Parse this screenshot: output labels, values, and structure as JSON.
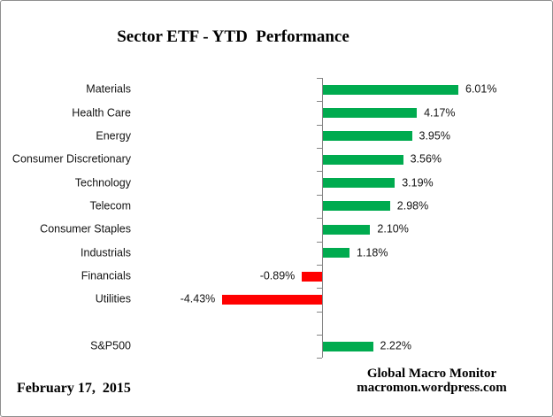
{
  "header": {
    "title": "Sector ETF - YTD  Performance"
  },
  "footer": {
    "date": "February 17,  2015",
    "brand_line1": "Global Macro Monitor",
    "brand_line2": "macromon.wordpress.com"
  },
  "colors": {
    "positive_bar": "#00AB4F",
    "negative_bar": "#FF0000",
    "axis": "#858585",
    "label_text": "#141414"
  },
  "chart_data": {
    "type": "bar",
    "orientation": "horizontal",
    "title": "Sector ETF - YTD Performance",
    "xlabel": "",
    "ylabel": "",
    "grid": false,
    "legend": false,
    "xlim": [
      -5,
      6.5
    ],
    "value_unit": "percent",
    "categories": [
      "Materials",
      "Health Care",
      "Energy",
      "Consumer Discretionary",
      "Technology",
      "Telecom",
      "Consumer Staples",
      "Industrials",
      "Financials",
      "Utilities",
      "",
      "S&P500"
    ],
    "values": [
      6.01,
      4.17,
      3.95,
      3.56,
      3.19,
      2.98,
      2.1,
      1.18,
      -0.89,
      -4.43,
      null,
      2.22
    ],
    "value_labels": [
      "6.01%",
      "4.17%",
      "3.95%",
      "3.56%",
      "3.19%",
      "2.98%",
      "2.10%",
      "1.18%",
      "-0.89%",
      "-4.43%",
      "",
      "2.22%"
    ]
  }
}
